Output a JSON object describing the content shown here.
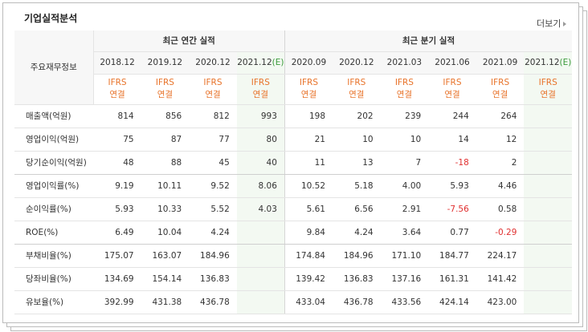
{
  "title": "기업실적분석",
  "more": "더보기",
  "table": {
    "corner": "주요재무정보",
    "groups": [
      {
        "label": "최근 연간 실적",
        "columns": [
          {
            "period": "2018.12",
            "basis": [
              "IFRS",
              "연결"
            ]
          },
          {
            "period": "2019.12",
            "basis": [
              "IFRS",
              "연결"
            ]
          },
          {
            "period": "2020.12",
            "basis": [
              "IFRS",
              "연결"
            ]
          },
          {
            "period": "2021.12",
            "estimate": "(E)",
            "basis": [
              "IFRS",
              "연결"
            ]
          }
        ]
      },
      {
        "label": "최근 분기 실적",
        "columns": [
          {
            "period": "2020.09",
            "basis": [
              "IFRS",
              "연결"
            ]
          },
          {
            "period": "2020.12",
            "basis": [
              "IFRS",
              "연결"
            ]
          },
          {
            "period": "2021.03",
            "basis": [
              "IFRS",
              "연결"
            ]
          },
          {
            "period": "2021.06",
            "basis": [
              "IFRS",
              "연결"
            ]
          },
          {
            "period": "2021.09",
            "basis": [
              "IFRS",
              "연결"
            ]
          },
          {
            "period": "2021.12",
            "estimate": "(E)",
            "basis": [
              "IFRS",
              "연결"
            ]
          }
        ]
      }
    ],
    "rows": [
      {
        "label": "매출액(억원)",
        "values": [
          "814",
          "856",
          "812",
          "993",
          "198",
          "202",
          "239",
          "244",
          "264",
          null
        ]
      },
      {
        "label": "영업이익(억원)",
        "values": [
          "75",
          "87",
          "77",
          "80",
          "21",
          "10",
          "10",
          "14",
          "12",
          null
        ]
      },
      {
        "label": "당기순이익(억원)",
        "values": [
          "48",
          "88",
          "45",
          "40",
          "11",
          "13",
          "7",
          "-18",
          "2",
          null
        ]
      },
      {
        "label": "영업이익률(%)",
        "values": [
          "9.19",
          "10.11",
          "9.52",
          "8.06",
          "10.52",
          "5.18",
          "4.00",
          "5.93",
          "4.46",
          null
        ]
      },
      {
        "label": "순이익률(%)",
        "values": [
          "5.93",
          "10.33",
          "5.52",
          "4.03",
          "5.61",
          "6.56",
          "2.91",
          "-7.56",
          "0.58",
          null
        ]
      },
      {
        "label": "ROE(%)",
        "values": [
          "6.49",
          "10.04",
          "4.24",
          null,
          "9.84",
          "4.24",
          "3.64",
          "0.77",
          "-0.29",
          null
        ]
      },
      {
        "label": "부채비율(%)",
        "values": [
          "175.07",
          "163.07",
          "184.96",
          null,
          "174.84",
          "184.96",
          "171.10",
          "184.77",
          "224.17",
          null
        ]
      },
      {
        "label": "당좌비율(%)",
        "values": [
          "134.69",
          "154.14",
          "136.83",
          null,
          "139.42",
          "136.83",
          "137.16",
          "161.31",
          "141.42",
          null
        ]
      },
      {
        "label": "유보율(%)",
        "values": [
          "392.99",
          "431.38",
          "436.78",
          null,
          "433.04",
          "436.78",
          "433.56",
          "424.14",
          "423.00",
          null
        ]
      }
    ]
  }
}
